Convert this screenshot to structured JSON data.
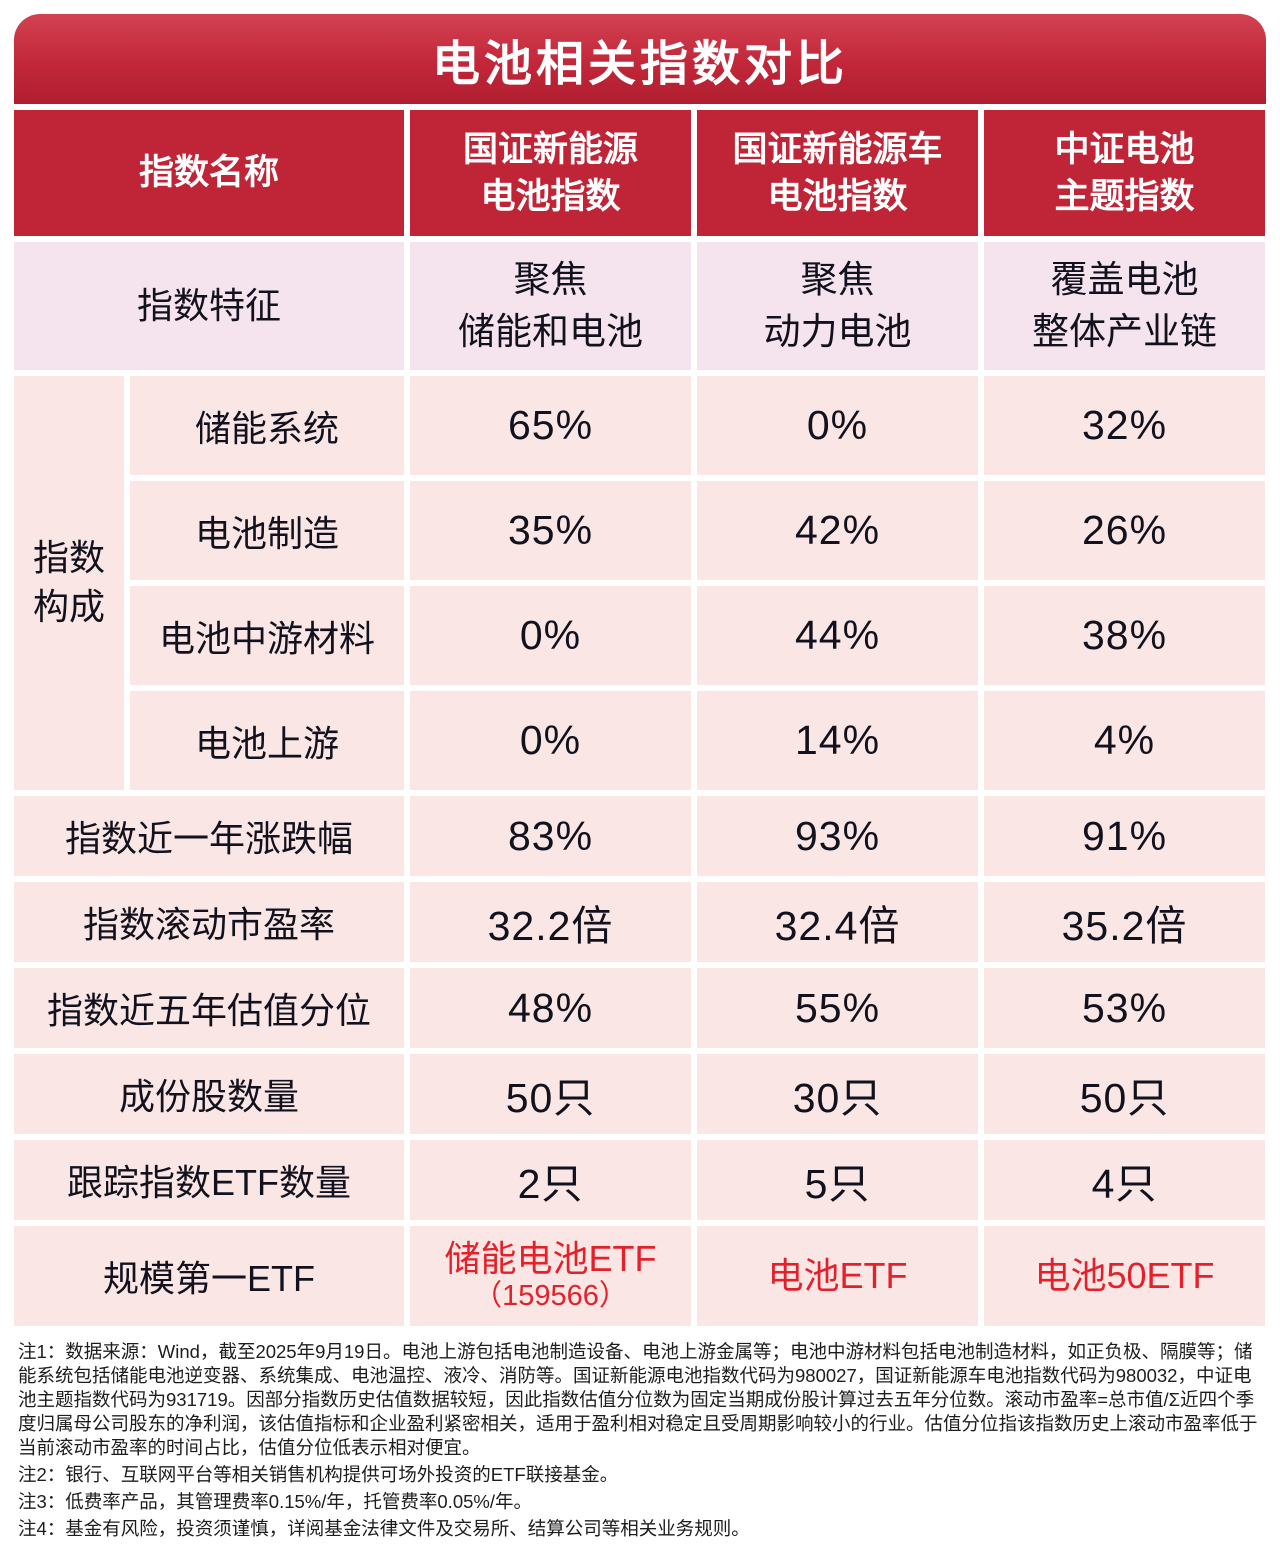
{
  "title": "电池相关指数对比",
  "table": {
    "header": {
      "col0": "指数名称",
      "cols": [
        "国证新能源\n电池指数",
        "国证新能源车\n电池指数",
        "中证电池\n主题指数"
      ]
    },
    "feature": {
      "label": "指数特征",
      "values": [
        "聚焦\n储能和电池",
        "聚焦\n动力电池",
        "覆盖电池\n整体产业链"
      ]
    },
    "composition": {
      "group_label": "指数\n构成",
      "rows": [
        {
          "label": "储能系统",
          "values": [
            "65%",
            "0%",
            "32%"
          ]
        },
        {
          "label": "电池制造",
          "values": [
            "35%",
            "42%",
            "26%"
          ]
        },
        {
          "label": "电池中游材料",
          "values": [
            "0%",
            "44%",
            "38%"
          ]
        },
        {
          "label": "电池上游",
          "values": [
            "0%",
            "14%",
            "4%"
          ]
        }
      ]
    },
    "metrics": [
      {
        "label": "指数近一年涨跌幅",
        "values": [
          "83%",
          "93%",
          "91%"
        ]
      },
      {
        "label": "指数滚动市盈率",
        "values": [
          "32.2倍",
          "32.4倍",
          "35.2倍"
        ]
      },
      {
        "label": "指数近五年估值分位",
        "values": [
          "48%",
          "55%",
          "53%"
        ]
      },
      {
        "label": "成份股数量",
        "values": [
          "50只",
          "30只",
          "50只"
        ]
      },
      {
        "label": "跟踪指数ETF数量",
        "values": [
          "2只",
          "5只",
          "4只"
        ]
      }
    ],
    "etf": {
      "label": "规模第一ETF",
      "values": [
        {
          "main": "储能电池ETF",
          "sub": "（159566）"
        },
        {
          "main": "电池ETF",
          "sub": ""
        },
        {
          "main": "电池50ETF",
          "sub": ""
        }
      ]
    }
  },
  "notes": [
    "注1：数据来源：Wind，截至2025年9月19日。电池上游包括电池制造设备、电池上游金属等；电池中游材料包括电池制造材料，如正负极、隔膜等；储能系统包括储能电池逆变器、系统集成、电池温控、液冷、消防等。国证新能源电池指数代码为980027，国证新能源车电池指数代码为980032，中证电池主题指数代码为931719。因部分指数历史估值数据较短，因此指数估值分位数为固定当期成份股计算过去五年分位数。滚动市盈率=总市值/Σ近四个季度归属母公司股东的净利润，该估值指标和企业盈利紧密相关，适用于盈利相对稳定且受周期影响较小的行业。估值分位指该指数历史上滚动市盈率低于当前滚动市盈率的时间占比，估值分位低表示相对便宜。",
    "注2：银行、互联网平台等相关销售机构提供可场外投资的ETF联接基金。",
    "注3：低费率产品，其管理费率0.15%/年，托管费率0.05%/年。",
    "注4：基金有风险，投资须谨慎，详阅基金法律文件及交易所、结算公司等相关业务规则。"
  ],
  "colors": {
    "header_red": "#bf2537",
    "row_pink": "#fae6e4",
    "feature_pink": "#f5e4ed",
    "etf_red": "#e4212a"
  },
  "chart_data": {
    "type": "table",
    "title": "电池相关指数对比",
    "columns": [
      "指数名称",
      "国证新能源电池指数",
      "国证新能源车电池指数",
      "中证电池主题指数"
    ],
    "rows": [
      [
        "指数特征",
        "聚焦储能和电池",
        "聚焦动力电池",
        "覆盖电池整体产业链"
      ],
      [
        "指数构成-储能系统",
        "65%",
        "0%",
        "32%"
      ],
      [
        "指数构成-电池制造",
        "35%",
        "42%",
        "26%"
      ],
      [
        "指数构成-电池中游材料",
        "0%",
        "44%",
        "38%"
      ],
      [
        "指数构成-电池上游",
        "0%",
        "14%",
        "4%"
      ],
      [
        "指数近一年涨跌幅",
        "83%",
        "93%",
        "91%"
      ],
      [
        "指数滚动市盈率",
        "32.2倍",
        "32.4倍",
        "35.2倍"
      ],
      [
        "指数近五年估值分位",
        "48%",
        "55%",
        "53%"
      ],
      [
        "成份股数量",
        "50只",
        "30只",
        "50只"
      ],
      [
        "跟踪指数ETF数量",
        "2只",
        "5只",
        "4只"
      ],
      [
        "规模第一ETF",
        "储能电池ETF（159566）",
        "电池ETF",
        "电池50ETF"
      ]
    ]
  }
}
